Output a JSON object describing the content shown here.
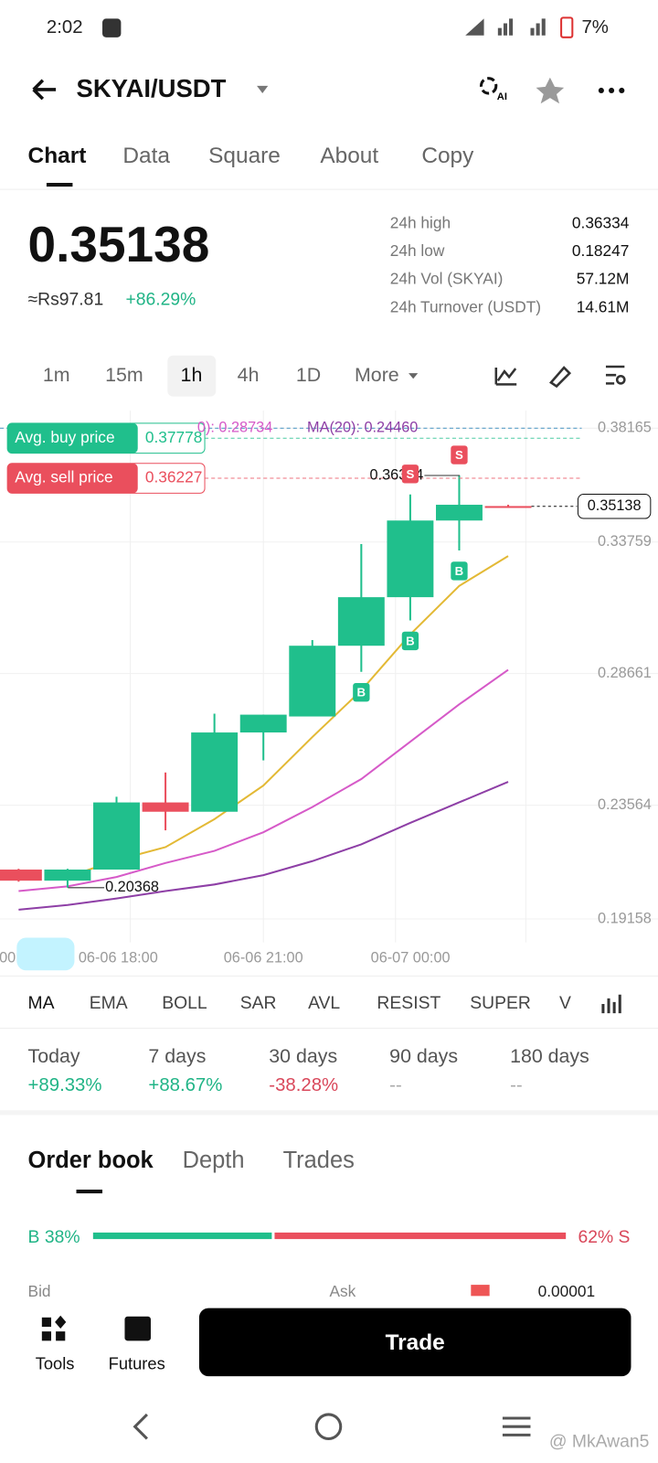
{
  "status_bar": {
    "time": "2:02",
    "battery": "7%"
  },
  "header": {
    "pair": "SKYAI/USDT",
    "ai": "AI"
  },
  "tabs": [
    "Chart",
    "Data",
    "Square",
    "About",
    "Copy"
  ],
  "price": {
    "last": "0.35138",
    "fiat": "≈Rs97.81",
    "change": "+86.29%"
  },
  "stats": [
    {
      "label": "24h high",
      "value": "0.36334"
    },
    {
      "label": "24h low",
      "value": "0.18247"
    },
    {
      "label": "24h Vol (SKYAI)",
      "value": "57.12M"
    },
    {
      "label": "24h Turnover (USDT)",
      "value": "14.61M"
    }
  ],
  "intervals": [
    "1m",
    "15m",
    "1h",
    "4h",
    "1D",
    "More"
  ],
  "chart_data": {
    "type": "candlestick",
    "ylim": [
      0.1825,
      0.3885
    ],
    "yticks": [
      0.38165,
      0.33759,
      0.28661,
      0.23564,
      0.19158
    ],
    "x_labels": [
      "00",
      "06-06 18:00",
      "06-06 21:00",
      "06-07 00:00"
    ],
    "up_color": "#20bf8c",
    "down_color": "#ea4f5d",
    "candles": [
      {
        "open": 0.2107,
        "high": 0.211,
        "low": 0.206,
        "close": 0.2064
      },
      {
        "open": 0.2064,
        "high": 0.211,
        "low": 0.2037,
        "close": 0.2107
      },
      {
        "open": 0.2107,
        "high": 0.2389,
        "low": 0.2107,
        "close": 0.2367
      },
      {
        "open": 0.2367,
        "high": 0.2483,
        "low": 0.2259,
        "close": 0.2331
      },
      {
        "open": 0.2331,
        "high": 0.2711,
        "low": 0.2331,
        "close": 0.2638
      },
      {
        "open": 0.2638,
        "high": 0.2707,
        "low": 0.253,
        "close": 0.2707
      },
      {
        "open": 0.27,
        "high": 0.2996,
        "low": 0.27,
        "close": 0.2974
      },
      {
        "open": 0.2974,
        "high": 0.3368,
        "low": 0.2873,
        "close": 0.3162
      },
      {
        "open": 0.3162,
        "high": 0.356,
        "low": 0.3072,
        "close": 0.3459
      },
      {
        "open": 0.3459,
        "high": 0.36334,
        "low": 0.3343,
        "close": 0.352
      },
      {
        "open": 0.3515,
        "high": 0.352,
        "low": 0.3508,
        "close": 0.3513
      }
    ],
    "ma_lines": [
      {
        "color": "#e3b935",
        "values": [
          null,
          0.20781,
          0.21432,
          0.21938,
          0.23022,
          0.24323,
          0.26203,
          0.2801,
          0.30178,
          0.32057,
          0.33214
        ]
      },
      {
        "color": "#d65ac8",
        "values": [
          0.20239,
          0.2042,
          0.20781,
          0.21324,
          0.21793,
          0.22516,
          0.23492,
          0.24576,
          0.26022,
          0.27468,
          0.28805
        ]
      },
      {
        "color": "#8e3fa6",
        "values": [
          0.19517,
          0.19697,
          0.1995,
          0.20239,
          0.20492,
          0.20854,
          0.21396,
          0.22047,
          0.22878,
          0.23673,
          0.24468
        ]
      }
    ],
    "legend": [
      "0): 0.28734",
      "MA(20): 0.24460"
    ],
    "last_price": 0.35138,
    "high_marker": 0.36334,
    "low_marker": 0.20368,
    "avg_buy": {
      "label": "Avg. buy price",
      "value": 0.37778
    },
    "avg_sell": {
      "label": "Avg. sell price",
      "value": 0.36227
    },
    "trade_markers": [
      "S",
      "S",
      "B",
      "B",
      "B"
    ]
  },
  "indicators": [
    "MA",
    "EMA",
    "BOLL",
    "SAR",
    "AVL",
    "RESIST",
    "SUPER",
    "V"
  ],
  "performance": [
    {
      "period": "Today",
      "change": "+89.33%"
    },
    {
      "period": "7 days",
      "change": "+88.67%"
    },
    {
      "period": "30 days",
      "change": "-38.28%"
    },
    {
      "period": "90 days",
      "change": "--"
    },
    {
      "period": "180 days",
      "change": "--"
    }
  ],
  "order_book": {
    "tabs": [
      "Order book",
      "Depth",
      "Trades"
    ],
    "buy": 38,
    "buy_label": "B 38%",
    "sell_label": "62% S",
    "columns": [
      "Bid",
      "Ask"
    ],
    "precision": "0.00001"
  },
  "bottom_nav": {
    "tools": "Tools",
    "futures": "Futures",
    "trade": "Trade"
  },
  "watermark": "@ MkAwan5"
}
